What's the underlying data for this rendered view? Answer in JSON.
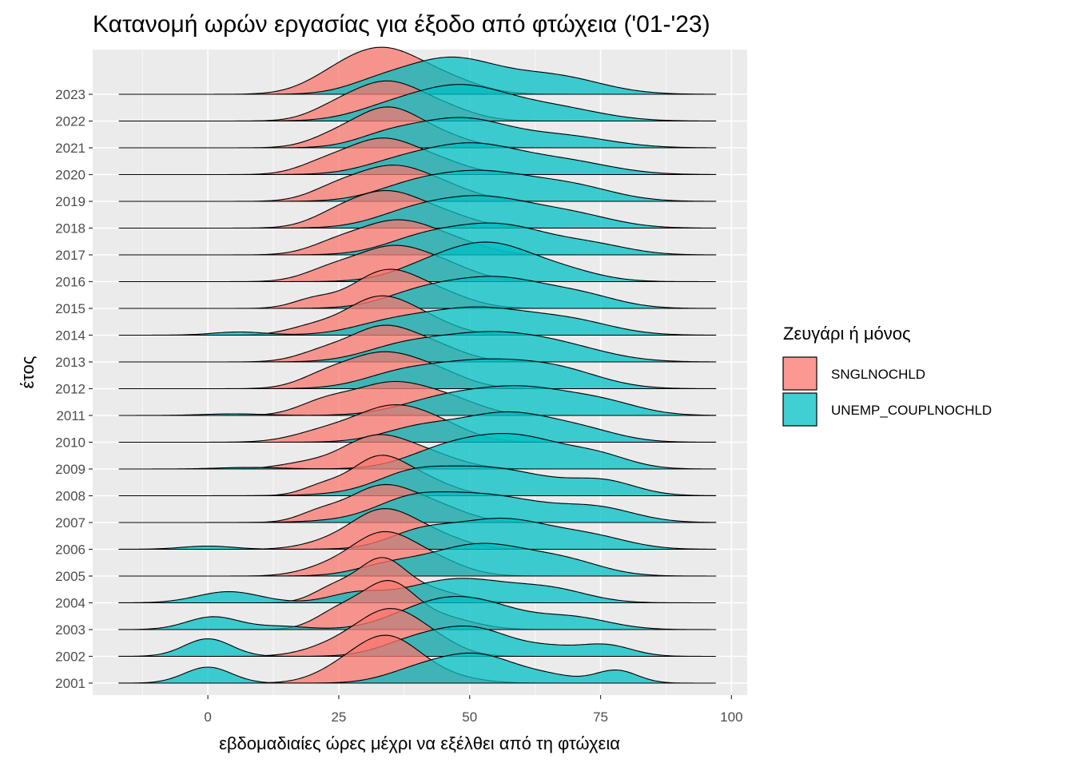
{
  "chart_data": {
    "type": "ridgeline",
    "title": "Κατανομή ωρών εργασίας για έξοδο από φτώχεια ('01-'23)",
    "xlabel": "εβδομαδιαίες ώρες μέχρι να εξέλθει από τη φτώχεια",
    "ylabel": "έτος",
    "xlim": [
      -22,
      103
    ],
    "x_ticks": [
      0,
      25,
      50,
      75,
      100
    ],
    "x_tick_labels": [
      "0",
      "25",
      "50",
      "75",
      "100"
    ],
    "grid": true,
    "legend_position": "right",
    "legend_title": "Ζευγάρι ή μόνος",
    "density_range": [
      -17,
      97
    ],
    "categories": [
      "2001",
      "2002",
      "2003",
      "2004",
      "2005",
      "2006",
      "2007",
      "2008",
      "2009",
      "2010",
      "2011",
      "2012",
      "2013",
      "2014",
      "2015",
      "2016",
      "2017",
      "2018",
      "2019",
      "2020",
      "2021",
      "2022",
      "2023"
    ],
    "series": [
      {
        "name": "SNGLNOCHLD",
        "color": "#F8766D",
        "components_note": "gaussian mixture [mean, sd, height] per year",
        "years": [
          [
            [
              34,
              6.5,
              1.45
            ],
            [
              24,
              5,
              0.2
            ],
            [
              46,
              6,
              0.15
            ]
          ],
          [
            [
              35,
              6,
              1.35
            ],
            [
              25,
              6,
              0.35
            ],
            [
              44,
              5,
              0.3
            ]
          ],
          [
            [
              34.5,
              5,
              1.4
            ],
            [
              25,
              4.5,
              0.55
            ],
            [
              45,
              6,
              0.35
            ]
          ],
          [
            [
              33,
              4.5,
              1.25
            ],
            [
              24,
              4,
              0.45
            ],
            [
              42,
              6,
              0.4
            ]
          ],
          [
            [
              33,
              6,
              1.25
            ],
            [
              43,
              6,
              0.45
            ],
            [
              22,
              5,
              0.2
            ]
          ],
          [
            [
              33,
              6,
              1.15
            ],
            [
              43,
              6,
              0.4
            ],
            [
              22,
              5,
              0.15
            ]
          ],
          [
            [
              33,
              6.5,
              1.1
            ],
            [
              44,
              6,
              0.4
            ],
            [
              21,
              4,
              0.25
            ]
          ],
          [
            [
              32,
              5,
              1.0
            ],
            [
              40,
              6,
              0.55
            ],
            [
              22,
              4,
              0.3
            ]
          ],
          [
            [
              32,
              6.5,
              1.0
            ],
            [
              43,
              6,
              0.35
            ],
            [
              18,
              5,
              0.15
            ]
          ],
          [
            [
              35,
              7,
              1.05
            ],
            [
              45,
              6,
              0.35
            ],
            [
              22,
              6,
              0.3
            ]
          ],
          [
            [
              35,
              7.5,
              1.0
            ],
            [
              22,
              5,
              0.35
            ],
            [
              47,
              6,
              0.35
            ]
          ],
          [
            [
              33,
              7,
              1.05
            ],
            [
              44,
              6,
              0.4
            ],
            [
              22,
              5,
              0.3
            ]
          ],
          [
            [
              33,
              6,
              1.0
            ],
            [
              43,
              6,
              0.45
            ],
            [
              22,
              5,
              0.3
            ]
          ],
          [
            [
              32,
              6,
              1.05
            ],
            [
              41,
              6,
              0.45
            ],
            [
              20,
              5,
              0.25
            ]
          ],
          [
            [
              34,
              6.5,
              1.15
            ],
            [
              45,
              6,
              0.35
            ],
            [
              20,
              4,
              0.25
            ]
          ],
          [
            [
              35,
              7,
              1.05
            ],
            [
              23,
              5,
              0.3
            ],
            [
              46,
              6,
              0.35
            ]
          ],
          [
            [
              36,
              7.5,
              1.05
            ],
            [
              24,
              5,
              0.25
            ],
            [
              48,
              6,
              0.25
            ]
          ],
          [
            [
              34,
              7,
              1.1
            ],
            [
              24,
              5,
              0.25
            ],
            [
              46,
              6,
              0.3
            ]
          ],
          [
            [
              35,
              7,
              1.05
            ],
            [
              24,
              5,
              0.3
            ],
            [
              46,
              6,
              0.3
            ]
          ],
          [
            [
              33,
              6.5,
              1.05
            ],
            [
              22,
              5,
              0.3
            ],
            [
              44,
              6,
              0.35
            ]
          ],
          [
            [
              34,
              6,
              1.15
            ],
            [
              24,
              5,
              0.3
            ],
            [
              44,
              6,
              0.35
            ]
          ],
          [
            [
              34,
              6.5,
              1.15
            ],
            [
              24,
              5,
              0.3
            ],
            [
              45,
              6,
              0.35
            ]
          ],
          [
            [
              34,
              7.5,
              1.35
            ],
            [
              24,
              6,
              0.35
            ],
            [
              47,
              6,
              0.3
            ]
          ]
        ]
      },
      {
        "name": "UNEMP_COUPLNOCHLD",
        "color": "#00BFC4",
        "components_note": "gaussian mixture [mean, sd, height] per year",
        "years": [
          [
            [
              0,
              4.5,
              0.5
            ],
            [
              51,
              8,
              0.9
            ],
            [
              39,
              6,
              0.25
            ],
            [
              78,
              4,
              0.4
            ],
            [
              66,
              5,
              0.15
            ]
          ],
          [
            [
              0,
              4.5,
              0.55
            ],
            [
              50,
              8,
              0.9
            ],
            [
              38,
              6,
              0.3
            ],
            [
              76,
              5,
              0.35
            ],
            [
              66,
              5,
              0.2
            ]
          ],
          [
            [
              1,
              5,
              0.4
            ],
            [
              50,
              9,
              0.9
            ],
            [
              40,
              7,
              0.3
            ],
            [
              70,
              7,
              0.35
            ],
            [
              14,
              5,
              0.1
            ]
          ],
          [
            [
              4,
              6,
              0.35
            ],
            [
              48,
              10,
              0.75
            ],
            [
              66,
              7,
              0.35
            ],
            [
              28,
              5,
              0.25
            ]
          ],
          [
            [
              52,
              10,
              1.0
            ],
            [
              69,
              7,
              0.35
            ],
            [
              34,
              6,
              0.25
            ]
          ],
          [
            [
              56,
              10,
              0.95
            ],
            [
              40,
              6,
              0.4
            ],
            [
              74,
              7,
              0.3
            ],
            [
              0,
              5,
              0.1
            ]
          ],
          [
            [
              51,
              13,
              0.9
            ],
            [
              75,
              7,
              0.35
            ],
            [
              38,
              6,
              0.3
            ]
          ],
          [
            [
              52,
              13,
              0.9
            ],
            [
              76,
              6,
              0.35
            ],
            [
              38,
              6,
              0.3
            ]
          ],
          [
            [
              58,
              10,
              1.05
            ],
            [
              44,
              7,
              0.35
            ],
            [
              75,
              6,
              0.3
            ],
            [
              8,
              6,
              0.05
            ]
          ],
          [
            [
              57,
              9,
              0.9
            ],
            [
              40,
              7,
              0.4
            ],
            [
              72,
              7,
              0.3
            ]
          ],
          [
            [
              60,
              10,
              0.85
            ],
            [
              44,
              8,
              0.4
            ],
            [
              76,
              7,
              0.3
            ],
            [
              5,
              6,
              0.05
            ]
          ],
          [
            [
              52,
              11,
              0.85
            ],
            [
              68,
              8,
              0.4
            ],
            [
              36,
              7,
              0.3
            ]
          ],
          [
            [
              52,
              11,
              0.85
            ],
            [
              68,
              9,
              0.35
            ],
            [
              36,
              7,
              0.3
            ]
          ],
          [
            [
              51,
              11,
              0.85
            ],
            [
              70,
              8,
              0.35
            ],
            [
              6,
              5,
              0.1
            ],
            [
              34,
              7,
              0.25
            ]
          ],
          [
            [
              55,
              10,
              0.95
            ],
            [
              40,
              7,
              0.35
            ],
            [
              72,
              7,
              0.3
            ]
          ],
          [
            [
              54,
              8,
              1.1
            ],
            [
              42,
              7,
              0.4
            ],
            [
              68,
              7,
              0.3
            ]
          ],
          [
            [
              55,
              10,
              0.95
            ],
            [
              40,
              7,
              0.35
            ],
            [
              74,
              7,
              0.25
            ]
          ],
          [
            [
              52,
              10,
              0.95
            ],
            [
              70,
              8,
              0.35
            ],
            [
              38,
              7,
              0.3
            ]
          ],
          [
            [
              52,
              10,
              0.9
            ],
            [
              70,
              8,
              0.4
            ],
            [
              38,
              7,
              0.3
            ]
          ],
          [
            [
              50,
              9,
              0.9
            ],
            [
              68,
              9,
              0.4
            ],
            [
              36,
              7,
              0.3
            ]
          ],
          [
            [
              48,
              9,
              0.9
            ],
            [
              68,
              9,
              0.35
            ],
            [
              34,
              6,
              0.3
            ]
          ],
          [
            [
              48,
              9,
              1.05
            ],
            [
              66,
              9,
              0.4
            ],
            [
              34,
              7,
              0.3
            ]
          ],
          [
            [
              46,
              9,
              1.1
            ],
            [
              66,
              9,
              0.55
            ],
            [
              32,
              6,
              0.25
            ]
          ]
        ]
      }
    ],
    "background": "#EBEBEB",
    "gridline_color": "#FFFFFF",
    "outline_color": "#000000",
    "fill_opacity": 0.75
  }
}
